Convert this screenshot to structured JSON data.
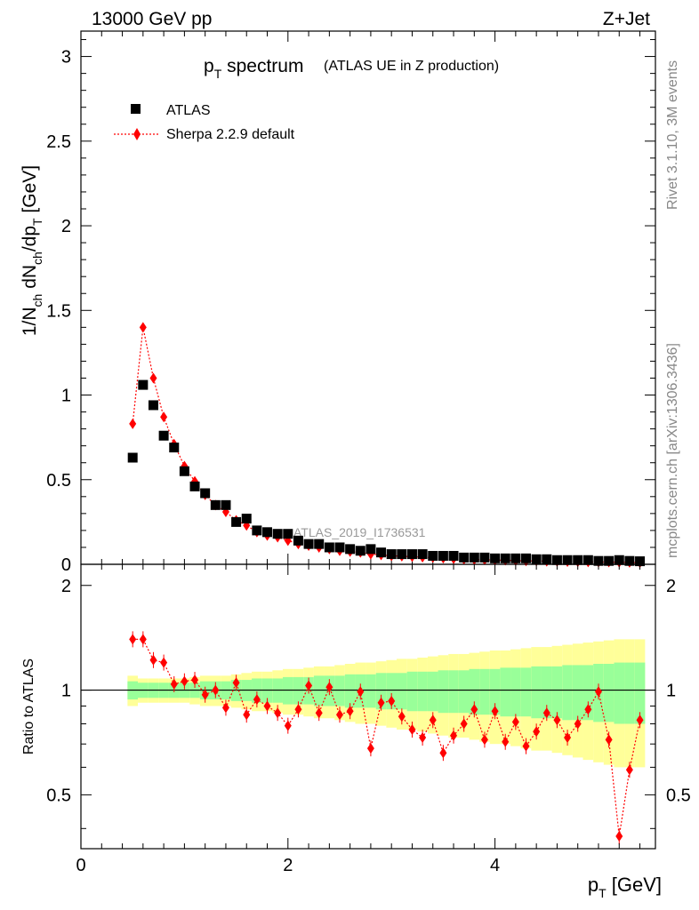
{
  "header": {
    "energy_label": "13000 GeV pp",
    "process_label": "Z+Jet"
  },
  "side_labels": {
    "rivet": "Rivet 3.1.10,  3M events",
    "source": "mcplots.cern.ch [arXiv:1306.3436]"
  },
  "chart_data": [
    {
      "type": "scatter",
      "title_main": "p",
      "title_sub": "T",
      "title_rest": " spectrum",
      "title_extra": "(ATLAS UE in Z production)",
      "ylabel": "1/N_ch dN_ch/dp_T [GeV]",
      "ylabel_parts": {
        "a": "1/N",
        "a_sub": "ch",
        "b": " dN",
        "b_sub": "ch",
        "c": "/dp",
        "c_sub": "T",
        "d": " [GeV]"
      },
      "watermark": "ATLAS_2019_I1736531",
      "xlim": [
        0,
        5.55
      ],
      "ylim": [
        0,
        3.15
      ],
      "yticks": [
        0,
        0.5,
        1,
        1.5,
        2,
        2.5,
        3
      ],
      "ytick_labels": [
        "0",
        "0.5",
        "1",
        "1.5",
        "2",
        "2.5",
        "3"
      ],
      "legend": [
        {
          "label": "ATLAS",
          "marker": "square",
          "color": "#000000"
        },
        {
          "label": "Sherpa 2.2.9 default",
          "marker": "diamond",
          "color": "#ff0000"
        }
      ],
      "x": [
        0.5,
        0.6,
        0.7,
        0.8,
        0.9,
        1.0,
        1.1,
        1.2,
        1.3,
        1.4,
        1.5,
        1.6,
        1.7,
        1.8,
        1.9,
        2.0,
        2.1,
        2.2,
        2.3,
        2.4,
        2.5,
        2.6,
        2.7,
        2.8,
        2.9,
        3.0,
        3.1,
        3.2,
        3.3,
        3.4,
        3.5,
        3.6,
        3.7,
        3.8,
        3.9,
        4.0,
        4.1,
        4.2,
        4.3,
        4.4,
        4.5,
        4.6,
        4.7,
        4.8,
        4.9,
        5.0,
        5.1,
        5.2,
        5.3,
        5.4
      ],
      "series": [
        {
          "name": "ATLAS",
          "values": [
            0.63,
            1.06,
            0.94,
            0.76,
            0.69,
            0.55,
            0.46,
            0.42,
            0.35,
            0.35,
            0.25,
            0.27,
            0.2,
            0.19,
            0.18,
            0.18,
            0.14,
            0.12,
            0.12,
            0.1,
            0.1,
            0.09,
            0.08,
            0.09,
            0.07,
            0.06,
            0.06,
            0.06,
            0.06,
            0.05,
            0.05,
            0.05,
            0.04,
            0.04,
            0.04,
            0.035,
            0.035,
            0.035,
            0.035,
            0.03,
            0.03,
            0.025,
            0.025,
            0.025,
            0.025,
            0.02,
            0.02,
            0.025,
            0.02,
            0.018
          ]
        },
        {
          "name": "Sherpa 2.2.9 default",
          "values": [
            0.83,
            1.4,
            1.1,
            0.87,
            0.71,
            0.58,
            0.49,
            0.41,
            0.35,
            0.31,
            0.26,
            0.23,
            0.19,
            0.17,
            0.16,
            0.14,
            0.12,
            0.11,
            0.1,
            0.09,
            0.08,
            0.075,
            0.07,
            0.06,
            0.055,
            0.05,
            0.048,
            0.045,
            0.042,
            0.04,
            0.036,
            0.033,
            0.03,
            0.028,
            0.027,
            0.025,
            0.024,
            0.022,
            0.02,
            0.02,
            0.018,
            0.017,
            0.016,
            0.015,
            0.014,
            0.013,
            0.013,
            0.012,
            0.011,
            0.01
          ]
        }
      ]
    },
    {
      "type": "scatter",
      "ylabel": "Ratio to ATLAS",
      "xlabel_main": "p",
      "xlabel_sub": "T",
      "xlabel_rest": " [GeV]",
      "xlim": [
        0,
        5.55
      ],
      "ylim": [
        0.35,
        2.3
      ],
      "yscale": "log",
      "yticks": [
        0.5,
        1,
        2
      ],
      "ytick_labels": [
        "0.5",
        "1",
        "2"
      ],
      "xticks": [
        0,
        2,
        4
      ],
      "xtick_labels": [
        "0",
        "2",
        "4"
      ],
      "reference": 1,
      "x": [
        0.5,
        0.6,
        0.7,
        0.8,
        0.9,
        1.0,
        1.1,
        1.2,
        1.3,
        1.4,
        1.5,
        1.6,
        1.7,
        1.8,
        1.9,
        2.0,
        2.1,
        2.2,
        2.3,
        2.4,
        2.5,
        2.6,
        2.7,
        2.8,
        2.9,
        3.0,
        3.1,
        3.2,
        3.3,
        3.4,
        3.5,
        3.6,
        3.7,
        3.8,
        3.9,
        4.0,
        4.1,
        4.2,
        4.3,
        4.4,
        4.5,
        4.6,
        4.7,
        4.8,
        4.9,
        5.0,
        5.1,
        5.2,
        5.3,
        5.4
      ],
      "ratio": [
        1.4,
        1.4,
        1.22,
        1.2,
        1.04,
        1.06,
        1.07,
        0.97,
        1.0,
        0.89,
        1.05,
        0.85,
        0.94,
        0.9,
        0.86,
        0.79,
        0.88,
        1.03,
        0.86,
        1.02,
        0.85,
        0.87,
        0.99,
        0.68,
        0.92,
        0.93,
        0.84,
        0.77,
        0.73,
        0.82,
        0.66,
        0.74,
        0.8,
        0.88,
        0.72,
        0.87,
        0.71,
        0.81,
        0.69,
        0.76,
        0.86,
        0.82,
        0.73,
        0.8,
        0.88,
        0.99,
        0.72,
        0.38,
        0.59,
        0.82
      ],
      "band_inner": [
        0.06,
        0.05,
        0.05,
        0.05,
        0.05,
        0.05,
        0.05,
        0.06,
        0.06,
        0.06,
        0.07,
        0.07,
        0.08,
        0.08,
        0.08,
        0.09,
        0.09,
        0.09,
        0.1,
        0.1,
        0.1,
        0.11,
        0.11,
        0.11,
        0.12,
        0.12,
        0.12,
        0.13,
        0.13,
        0.13,
        0.14,
        0.14,
        0.14,
        0.15,
        0.15,
        0.15,
        0.16,
        0.16,
        0.16,
        0.17,
        0.17,
        0.17,
        0.18,
        0.18,
        0.18,
        0.19,
        0.19,
        0.2,
        0.2,
        0.2
      ],
      "band_outer": [
        0.1,
        0.08,
        0.08,
        0.08,
        0.08,
        0.08,
        0.09,
        0.1,
        0.1,
        0.1,
        0.11,
        0.12,
        0.13,
        0.13,
        0.14,
        0.15,
        0.15,
        0.16,
        0.17,
        0.17,
        0.18,
        0.19,
        0.2,
        0.2,
        0.21,
        0.22,
        0.23,
        0.23,
        0.24,
        0.25,
        0.26,
        0.27,
        0.27,
        0.28,
        0.29,
        0.3,
        0.3,
        0.31,
        0.32,
        0.33,
        0.33,
        0.34,
        0.35,
        0.36,
        0.37,
        0.38,
        0.39,
        0.4,
        0.4,
        0.4
      ]
    }
  ]
}
